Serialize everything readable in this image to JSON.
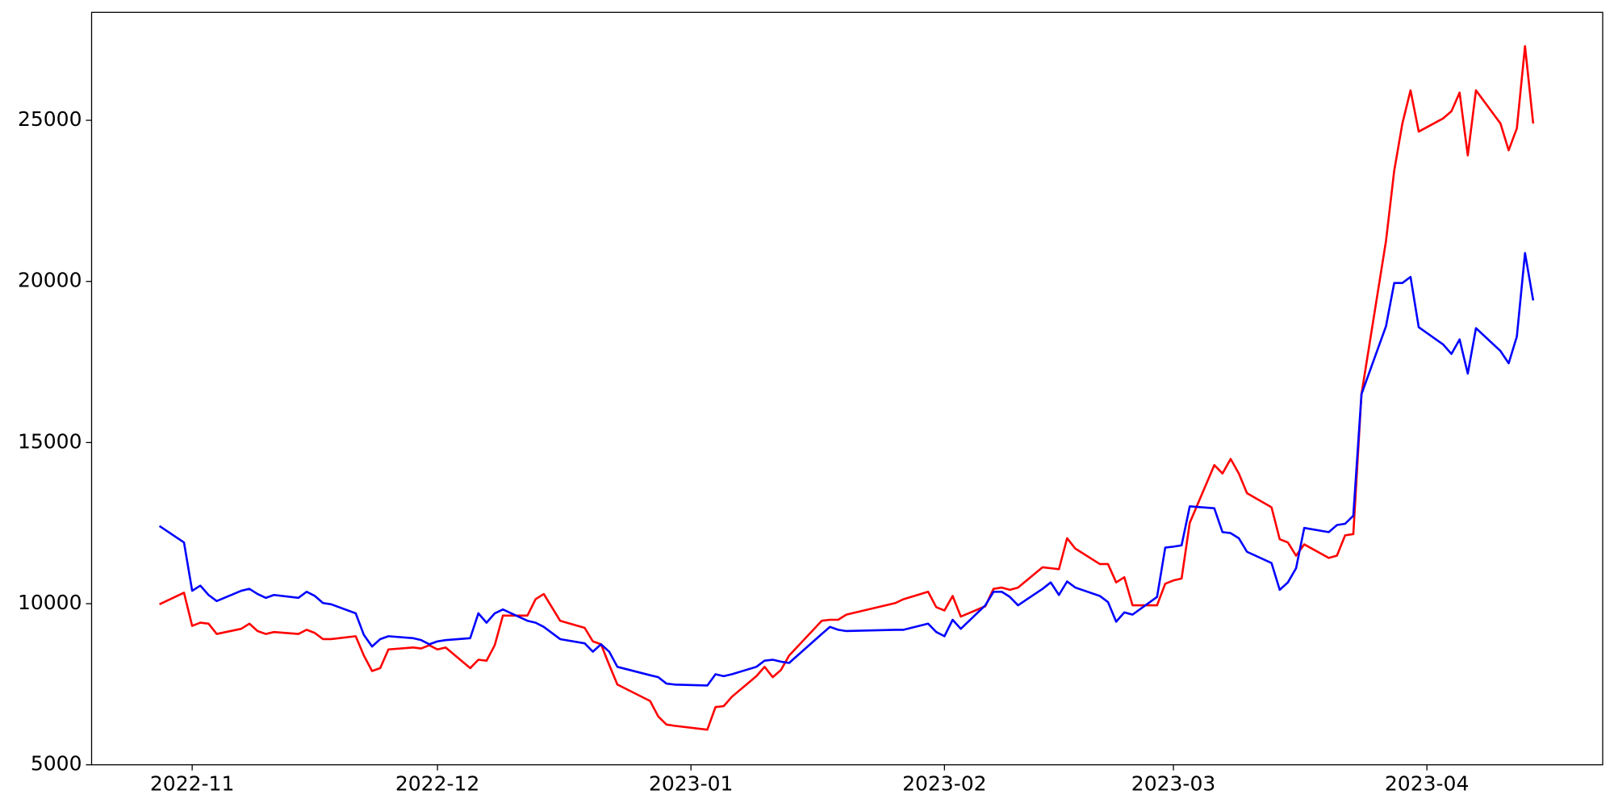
{
  "chart_data": {
    "type": "line",
    "x": [
      19293,
      19296,
      19297,
      19298,
      19299,
      19300,
      19303,
      19304,
      19305,
      19306,
      19307,
      19310,
      19311,
      19312,
      19313,
      19314,
      19317,
      19318,
      19319,
      19320,
      19321,
      19324,
      19325,
      19326,
      19327,
      19328,
      19331,
      19332,
      19333,
      19334,
      19335,
      19338,
      19339,
      19340,
      19342,
      19345,
      19346,
      19347,
      19348,
      19349,
      19353,
      19354,
      19355,
      19356,
      19360,
      19361,
      19362,
      19363,
      19366,
      19367,
      19368,
      19369,
      19370,
      19374,
      19375,
      19376,
      19377,
      19383,
      19384,
      19387,
      19388,
      19389,
      19390,
      19391,
      19394,
      19395,
      19396,
      19397,
      19398,
      19401,
      19402,
      19403,
      19404,
      19405,
      19408,
      19409,
      19410,
      19411,
      19412,
      19415,
      19416,
      19417,
      19418,
      19419,
      19422,
      19423,
      19424,
      19425,
      19426,
      19429,
      19430,
      19431,
      19432,
      19433,
      19436,
      19437,
      19438,
      19439,
      19440,
      19443,
      19444,
      19445,
      19446,
      19447,
      19450,
      19451,
      19452,
      19453,
      19454,
      19457,
      19458,
      19459,
      19460,
      19461
    ],
    "series": [
      {
        "color": "#ff0000",
        "values": [
          9980,
          10340,
          9310,
          9410,
          9380,
          9060,
          9220,
          9380,
          9150,
          9060,
          9120,
          9060,
          9190,
          9090,
          8900,
          8900,
          8990,
          8390,
          7910,
          8000,
          8580,
          8640,
          8610,
          8710,
          8580,
          8640,
          8000,
          8260,
          8230,
          8710,
          9630,
          9630,
          10140,
          10300,
          9470,
          9250,
          8830,
          8740,
          8100,
          7490,
          6980,
          6500,
          6250,
          6210,
          6090,
          6790,
          6820,
          7110,
          7750,
          8040,
          7720,
          7940,
          8390,
          9470,
          9500,
          9500,
          9660,
          10020,
          10140,
          10370,
          9890,
          9790,
          10240,
          9600,
          9920,
          10460,
          10500,
          10430,
          10500,
          11130,
          11100,
          11070,
          12030,
          11710,
          11230,
          11230,
          10660,
          10820,
          9950,
          9950,
          10620,
          10720,
          10780,
          12510,
          14300,
          14040,
          14490,
          14040,
          13430,
          12990,
          12000,
          11900,
          11490,
          11840,
          11420,
          11490,
          12120,
          12160,
          16500,
          21260,
          23430,
          24900,
          25930,
          24650,
          25060,
          25280,
          25860,
          23910,
          25930,
          24900,
          24070,
          24750,
          27300,
          24900
        ]
      },
      {
        "color": "#0000ff",
        "values": [
          12410,
          11900,
          10400,
          10560,
          10270,
          10080,
          10400,
          10460,
          10300,
          10180,
          10270,
          10180,
          10370,
          10240,
          10020,
          9980,
          9700,
          9030,
          8670,
          8900,
          8990,
          8930,
          8870,
          8740,
          8830,
          8870,
          8930,
          9700,
          9410,
          9700,
          9820,
          9470,
          9410,
          9280,
          8900,
          8770,
          8510,
          8740,
          8510,
          8040,
          7780,
          7720,
          7520,
          7490,
          7460,
          7810,
          7750,
          7810,
          8040,
          8230,
          8260,
          8200,
          8160,
          9060,
          9280,
          9190,
          9150,
          9190,
          9190,
          9380,
          9120,
          8990,
          9500,
          9220,
          9950,
          10370,
          10370,
          10210,
          9950,
          10460,
          10660,
          10270,
          10690,
          10500,
          10240,
          10050,
          9440,
          9730,
          9660,
          10210,
          11740,
          11770,
          11810,
          13020,
          12960,
          12220,
          12190,
          12030,
          11610,
          11260,
          10430,
          10660,
          11100,
          12350,
          12220,
          12440,
          12480,
          12730,
          16500,
          18610,
          19950,
          19950,
          20140,
          18580,
          18040,
          17750,
          18200,
          17140,
          18550,
          17840,
          17460,
          18290,
          20880,
          19410
        ]
      }
    ],
    "xlim": [
      19284.7,
      19469.5
    ],
    "xticks": [
      {
        "value": 19297,
        "label": "2022-11"
      },
      {
        "value": 19327,
        "label": "2022-12"
      },
      {
        "value": 19358,
        "label": "2023-01"
      },
      {
        "value": 19389,
        "label": "2023-02"
      },
      {
        "value": 19417,
        "label": "2023-03"
      },
      {
        "value": 19448,
        "label": "2023-04"
      }
    ],
    "ylim": [
      5000,
      28350
    ],
    "yticks": [
      5000,
      10000,
      15000,
      20000,
      25000
    ],
    "grid": false
  }
}
